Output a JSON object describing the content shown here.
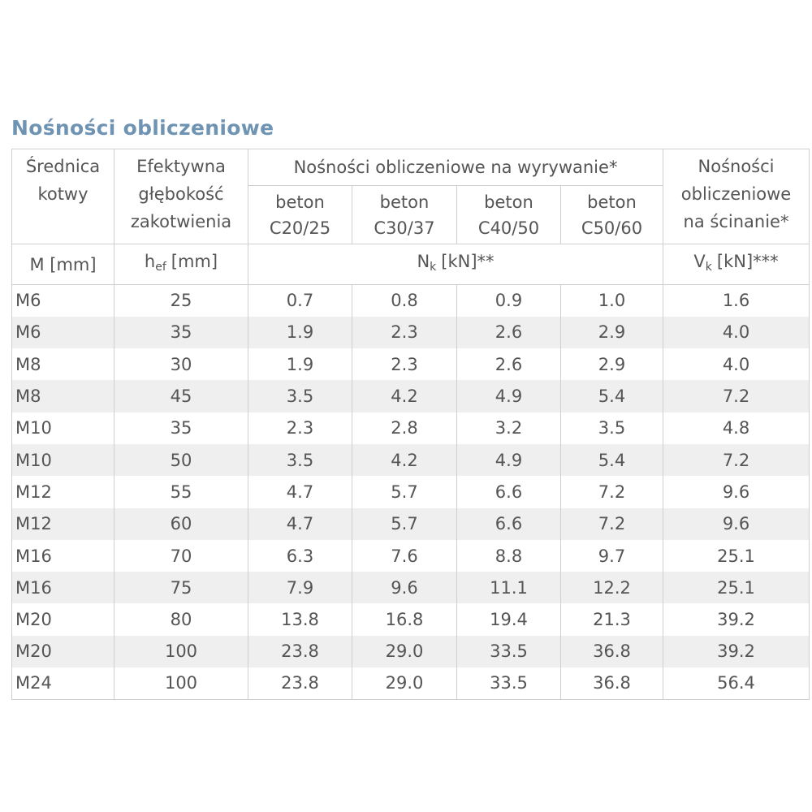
{
  "title": "Nośności obliczeniowe",
  "table": {
    "head": {
      "diameter": [
        "Średnica",
        "kotwy"
      ],
      "depth": [
        "Efektywna",
        "głębokość",
        "zakotwienia"
      ],
      "tension": "Nośności obliczeniowe na wyrywanie*",
      "shear": [
        "Nośności",
        "obliczeniowe",
        "na ścinanie*"
      ],
      "concrete": [
        [
          "beton",
          "C20/25"
        ],
        [
          "beton",
          "C30/37"
        ],
        [
          "beton",
          "C40/50"
        ],
        [
          "beton",
          "C50/60"
        ]
      ],
      "units": {
        "diameter": "M [mm]",
        "depth": {
          "symbol": "h",
          "sub": "ef",
          "unit": "[mm]"
        },
        "tension": {
          "symbol": "N",
          "sub": "k",
          "unit": "[kN]**"
        },
        "shear": {
          "symbol": "V",
          "sub": "k",
          "unit": "[kN]***"
        }
      }
    },
    "rows": [
      [
        "M6",
        "25",
        "0.7",
        "0.8",
        "0.9",
        "1.0",
        "1.6"
      ],
      [
        "M6",
        "35",
        "1.9",
        "2.3",
        "2.6",
        "2.9",
        "4.0"
      ],
      [
        "M8",
        "30",
        "1.9",
        "2.3",
        "2.6",
        "2.9",
        "4.0"
      ],
      [
        "M8",
        "45",
        "3.5",
        "4.2",
        "4.9",
        "5.4",
        "7.2"
      ],
      [
        "M10",
        "35",
        "2.3",
        "2.8",
        "3.2",
        "3.5",
        "4.8"
      ],
      [
        "M10",
        "50",
        "3.5",
        "4.2",
        "4.9",
        "5.4",
        "7.2"
      ],
      [
        "M12",
        "55",
        "4.7",
        "5.7",
        "6.6",
        "7.2",
        "9.6"
      ],
      [
        "M12",
        "60",
        "4.7",
        "5.7",
        "6.6",
        "7.2",
        "9.6"
      ],
      [
        "M16",
        "70",
        "6.3",
        "7.6",
        "8.8",
        "9.7",
        "25.1"
      ],
      [
        "M16",
        "75",
        "7.9",
        "9.6",
        "11.1",
        "12.2",
        "25.1"
      ],
      [
        "M20",
        "80",
        "13.8",
        "16.8",
        "19.4",
        "21.3",
        "39.2"
      ],
      [
        "M20",
        "100",
        "23.8",
        "29.0",
        "33.5",
        "36.8",
        "39.2"
      ],
      [
        "M24",
        "100",
        "23.8",
        "29.0",
        "33.5",
        "36.8",
        "56.4"
      ]
    ]
  }
}
